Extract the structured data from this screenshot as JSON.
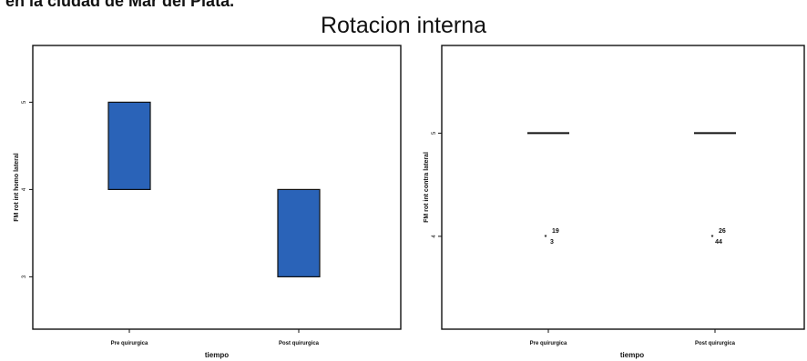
{
  "header_fragment": "en la ciudad de Mar del Plata.",
  "title": "Rotacion interna",
  "chart_data": [
    {
      "type": "box",
      "title": "",
      "xlabel": "tiempo",
      "ylabel": "FM rot int homo lateral",
      "categories": [
        "Pre quirurgica",
        "Post quirurgica"
      ],
      "boxes": [
        {
          "category": "Pre quirurgica",
          "q1": 4,
          "q3": 5,
          "median": null
        },
        {
          "category": "Post quirurgica",
          "q1": 3,
          "q3": 4,
          "median": null
        }
      ],
      "yticks": [
        3,
        4,
        5
      ],
      "ylim": [
        2.4,
        5.65
      ],
      "fill_color": "#2a63b8"
    },
    {
      "type": "box",
      "title": "",
      "xlabel": "tiempo",
      "ylabel": "FM rot int contra lateral",
      "categories": [
        "Pre quirurgica",
        "Post quirurgica"
      ],
      "boxes": [
        {
          "category": "Pre quirurgica",
          "median": 5
        },
        {
          "category": "Post quirurgica",
          "median": 5
        }
      ],
      "outliers": [
        {
          "category": "Pre quirurgica",
          "value": 4,
          "labels": [
            "19",
            "3"
          ]
        },
        {
          "category": "Post quirurgica",
          "value": 4,
          "labels": [
            "26",
            "44"
          ]
        }
      ],
      "yticks": [
        4,
        5
      ],
      "ylim": [
        3.1,
        5.85
      ]
    }
  ]
}
